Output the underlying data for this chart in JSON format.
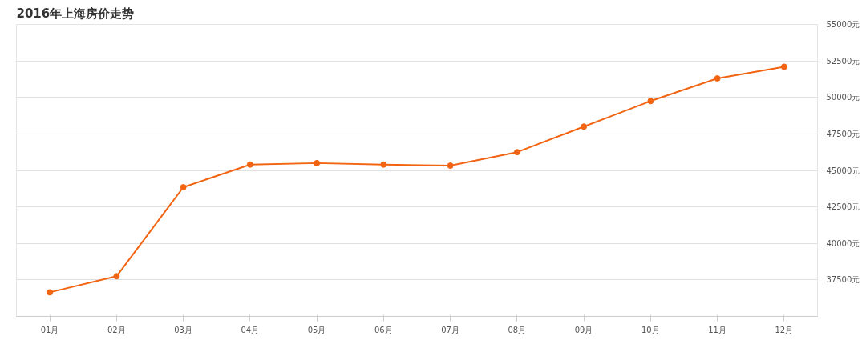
{
  "chart_data": {
    "type": "line",
    "title": "2016年上海房价走势",
    "categories": [
      "01月",
      "02月",
      "03月",
      "04月",
      "05月",
      "06月",
      "07月",
      "08月",
      "09月",
      "10月",
      "11月",
      "12月"
    ],
    "series": [
      {
        "color": "#f26411",
        "values": [
          36650,
          37750,
          43850,
          45400,
          45500,
          45400,
          45330,
          46250,
          48000,
          49750,
          51300,
          52100
        ]
      }
    ],
    "ylim": [
      35000,
      55000
    ],
    "yticks": [
      {
        "value": 37500,
        "label": "37500元"
      },
      {
        "value": 40000,
        "label": "40000元"
      },
      {
        "value": 42500,
        "label": "42500元"
      },
      {
        "value": 45000,
        "label": "45000元"
      },
      {
        "value": 47500,
        "label": "47500元"
      },
      {
        "value": 50000,
        "label": "50000元"
      },
      {
        "value": 52500,
        "label": "52500元"
      },
      {
        "value": 55000,
        "label": "55000元"
      }
    ],
    "grid": "y",
    "marker": "circle",
    "line_style": "solid"
  }
}
